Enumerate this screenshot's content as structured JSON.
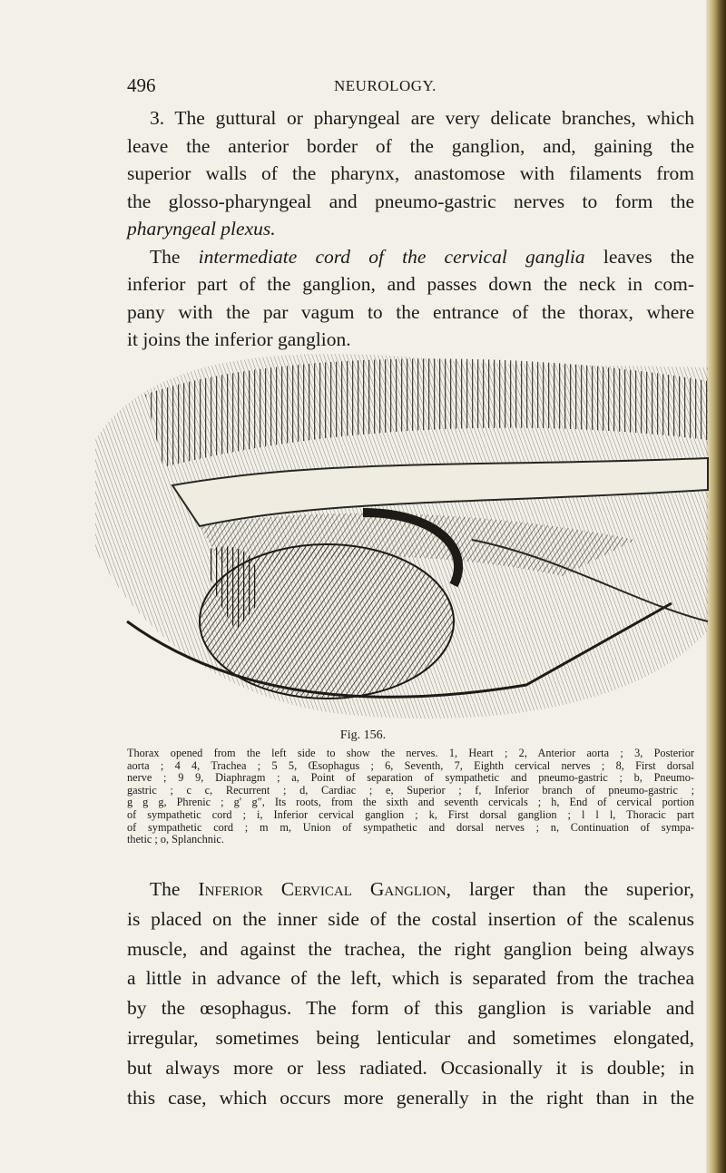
{
  "header": {
    "page_number": "496",
    "title": "NEUROLOGY."
  },
  "paragraphs": [
    {
      "lines": [
        {
          "indent": true,
          "segments": [
            {
              "text": "3. The guttural or pharyngeal are very delicate branches, which"
            }
          ]
        },
        {
          "segments": [
            {
              "text": "leave the anterior border of the ganglion, and, gaining the"
            }
          ]
        },
        {
          "segments": [
            {
              "text": "superior walls of the pharynx, anastomose with filaments from"
            }
          ]
        },
        {
          "segments": [
            {
              "text": "the glosso-pharyngeal and pneumo-gastric nerves to form the"
            }
          ]
        },
        {
          "last": true,
          "segments": [
            {
              "text": "pharyngeal plexus.",
              "italic": true
            }
          ]
        },
        {
          "indent": true,
          "segments": [
            {
              "text": "The "
            },
            {
              "text": "intermediate cord of the cervical ganglia",
              "italic": true
            },
            {
              "text": " leaves the"
            }
          ]
        },
        {
          "segments": [
            {
              "text": "inferior part of the ganglion, and passes down the neck in com-"
            }
          ]
        },
        {
          "segments": [
            {
              "text": "pany with the par vagum to the entrance of the thorax, where"
            }
          ]
        },
        {
          "last": true,
          "segments": [
            {
              "text": "it joins the inferior ganglion."
            }
          ]
        }
      ]
    },
    {
      "lines": [
        {
          "indent": true,
          "segments": [
            {
              "text": "The "
            },
            {
              "text": "Inferior Cervical Ganglion,",
              "smallcaps": true
            },
            {
              "text": " larger than the superior,"
            }
          ]
        },
        {
          "segments": [
            {
              "text": "is placed on the inner side of the costal insertion of the scalenus"
            }
          ]
        },
        {
          "segments": [
            {
              "text": "muscle, and against the trachea, the right ganglion being always"
            }
          ]
        },
        {
          "segments": [
            {
              "text": "a little in advance of the left, which is separated from the trachea"
            }
          ]
        },
        {
          "segments": [
            {
              "text": "by the œsophagus. The form of this ganglion is variable and"
            }
          ]
        },
        {
          "segments": [
            {
              "text": "irregular, sometimes being lenticular and sometimes elongated,"
            }
          ]
        },
        {
          "segments": [
            {
              "text": "but always more or less radiated. Occasionally it is double; in"
            }
          ]
        },
        {
          "segments": [
            {
              "text": "this case, which occurs more generally in the right than in the"
            }
          ]
        }
      ]
    }
  ],
  "figure": {
    "label": "Fig. 156.",
    "caption_lines": [
      "Thorax opened from the left side to show the nerves.  1, Heart ; 2, Anterior aorta ; 3, Posterior",
      "aorta ;  4 4, Trachea ;  5 5, Œsophagus ;  6, Seventh, 7, Eighth cervical nerves ;  8, First dorsal",
      "nerve ;  9 9, Diaphragm ;  a, Point of separation of sympathetic and pneumo-gastric ; b, Pneumo-",
      "gastric ;  c c, Recurrent ;  d, Cardiac ;  e, Superior ;  f, Inferior branch of pneumo-gastric ;",
      "g g g, Phrenic ;  g′ g″, Its roots, from the sixth and seventh cervicals ;  h, End of cervical portion",
      "of sympathetic cord ;  i, Inferior cervical ganglion ;  k, First dorsal ganglion ;  l l l, Thoracic part",
      "of sympathetic cord ;  m m, Union of sympathetic and dorsal nerves ;  n, Continuation of sympa-",
      "thetic ;  o, Splanchnic."
    ]
  }
}
